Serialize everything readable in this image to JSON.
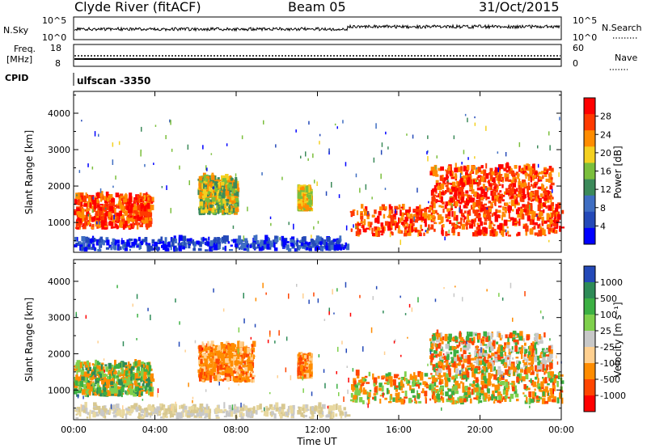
{
  "header": {
    "station": "Clyde River (fitACF)",
    "beam": "Beam 05",
    "date": "31/Oct/2015",
    "cpid_label": "CPID",
    "cpid_value": "ulfscan  -3350"
  },
  "strip": {
    "nsky_label": "N.Sky",
    "nsearch_label": "N.Search",
    "nsky_ticks": [
      "10^5",
      "10^0"
    ],
    "nsearch_ticks": [
      "10^5",
      "10^0"
    ],
    "freq_label_1": "Freq.",
    "freq_label_2": "[MHz]",
    "freq_ticks": [
      "18",
      "8"
    ],
    "nave_label": "Nave",
    "nave_ticks": [
      "60",
      "0"
    ]
  },
  "chart_data": [
    {
      "type": "heatmap",
      "name": "power",
      "ylabel": "Slant Range [km]",
      "xlabel": "",
      "x_range_hours": [
        0,
        24
      ],
      "y_range_km": [
        180,
        4600
      ],
      "y_ticks": [
        1000,
        2000,
        3000,
        4000
      ],
      "colorbar_label": "Power [dB]",
      "colorbar_ticks": [
        "28",
        "24",
        "20",
        "16",
        "12",
        "8",
        "4"
      ],
      "colorscale": [
        "#0000ff",
        "#2449b8",
        "#3f6ec2",
        "#3c8a5a",
        "#7bbf3c",
        "#f4d020",
        "#ff8c00",
        "#ff3a00",
        "#ff0000"
      ],
      "echo_regions": [
        {
          "t": [
            0.0,
            3.8
          ],
          "range_km": [
            800,
            1700
          ],
          "level": "high"
        },
        {
          "t": [
            6.1,
            8.0
          ],
          "range_km": [
            1200,
            2200
          ],
          "level": "medium"
        },
        {
          "t": [
            11.0,
            11.6
          ],
          "range_km": [
            1300,
            1900
          ],
          "level": "low"
        },
        {
          "t": [
            13.6,
            24.0
          ],
          "range_km": [
            600,
            1400
          ],
          "level": "high"
        },
        {
          "t": [
            17.5,
            23.5
          ],
          "range_km": [
            1400,
            2500
          ],
          "level": "high"
        },
        {
          "t": [
            0.0,
            13.5
          ],
          "range_km": [
            200,
            500
          ],
          "level": "ground"
        }
      ]
    },
    {
      "type": "heatmap",
      "name": "velocity",
      "ylabel": "Slant Range [km]",
      "xlabel": "Time UT",
      "x_range_hours": [
        0,
        24
      ],
      "x_ticks": [
        "00:00",
        "04:00",
        "08:00",
        "12:00",
        "16:00",
        "20:00",
        "00:00"
      ],
      "y_range_km": [
        180,
        4600
      ],
      "y_ticks": [
        1000,
        2000,
        3000,
        4000
      ],
      "colorbar_label": "Velocity [m s⁻¹]",
      "colorbar_ticks": [
        "1000",
        "500",
        "100",
        "25",
        "-25",
        "-100",
        "-500",
        "-1000"
      ],
      "colorscale": [
        "#ff0000",
        "#ff4500",
        "#ff8c00",
        "#ffd090",
        "#c8c8c8",
        "#7fd04c",
        "#3cb043",
        "#2e8b57",
        "#2449b8"
      ],
      "echo_regions": [
        {
          "t": [
            0.0,
            3.8
          ],
          "range_km": [
            800,
            1700
          ],
          "level": "mixed-green-orange"
        },
        {
          "t": [
            6.1,
            8.8
          ],
          "range_km": [
            1200,
            2200
          ],
          "level": "orange"
        },
        {
          "t": [
            11.0,
            11.6
          ],
          "range_km": [
            1300,
            1900
          ],
          "level": "orange"
        },
        {
          "t": [
            13.6,
            24.0
          ],
          "range_km": [
            600,
            1400
          ],
          "level": "orange-green"
        },
        {
          "t": [
            17.5,
            23.5
          ],
          "range_km": [
            1400,
            2500
          ],
          "level": "orange-gray"
        },
        {
          "t": [
            0.0,
            13.5
          ],
          "range_km": [
            200,
            500
          ],
          "level": "ground-gray"
        }
      ]
    }
  ]
}
